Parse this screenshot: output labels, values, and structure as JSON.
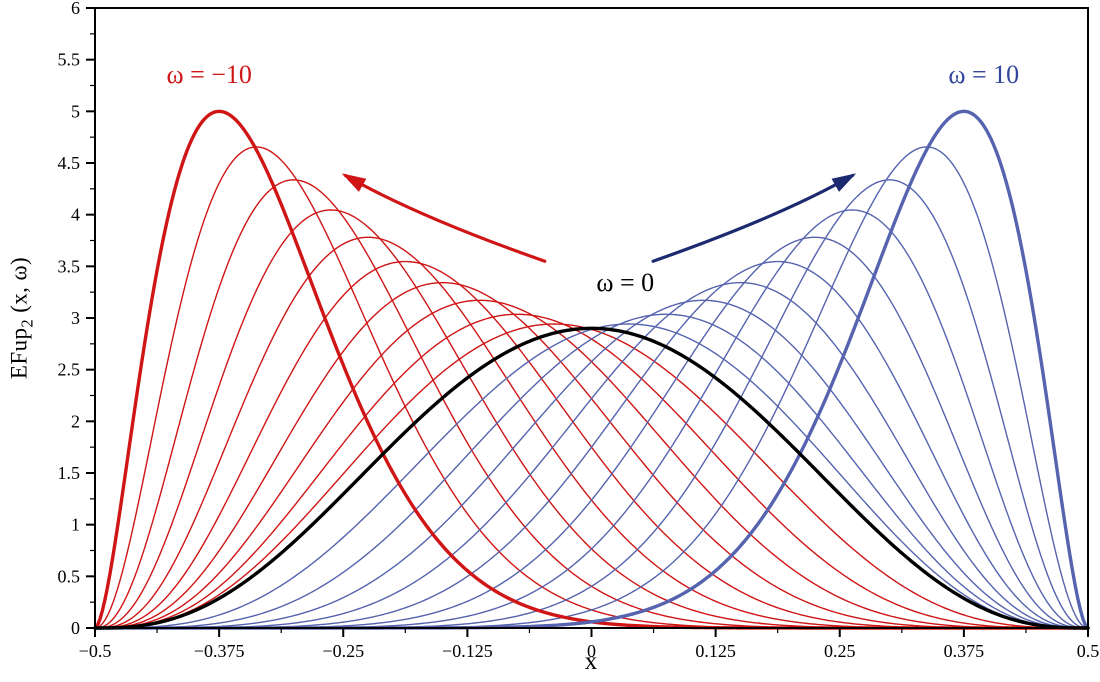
{
  "chart_data": {
    "type": "line",
    "title": "",
    "xlabel": "x",
    "ylabel": "EFup2 (x, ω)",
    "ylabel_parts": {
      "prefix": "EFup",
      "sub": "2",
      "suffix": " (x, ω)"
    },
    "xlim": [
      -0.5,
      0.5
    ],
    "ylim": [
      0,
      6
    ],
    "grid": false,
    "legend": "none",
    "x_ticks": [
      {
        "v": -0.5,
        "label": "−0.5"
      },
      {
        "v": -0.375,
        "label": "−0.375"
      },
      {
        "v": -0.25,
        "label": "−0.25"
      },
      {
        "v": -0.125,
        "label": "−0.125"
      },
      {
        "v": 0,
        "label": "0"
      },
      {
        "v": 0.125,
        "label": "0.125"
      },
      {
        "v": 0.25,
        "label": "0.25"
      },
      {
        "v": 0.375,
        "label": "0.375"
      },
      {
        "v": 0.5,
        "label": "0.5"
      }
    ],
    "y_ticks": [
      {
        "v": 0,
        "label": "0"
      },
      {
        "v": 0.5,
        "label": "0.5"
      },
      {
        "v": 1,
        "label": "1"
      },
      {
        "v": 1.5,
        "label": "1.5"
      },
      {
        "v": 2,
        "label": "2"
      },
      {
        "v": 2.5,
        "label": "2.5"
      },
      {
        "v": 3,
        "label": "3"
      },
      {
        "v": 3.5,
        "label": "3.5"
      },
      {
        "v": 4,
        "label": "4"
      },
      {
        "v": 4.5,
        "label": "4.5"
      },
      {
        "v": 5,
        "label": "5"
      },
      {
        "v": 5.5,
        "label": "5.5"
      },
      {
        "v": 6,
        "label": "6"
      }
    ],
    "x_minor_step": 0.0625,
    "y_minor_step": 0.25,
    "omega_values": [
      -10,
      -9,
      -8,
      -7,
      -6,
      -5,
      -4,
      -3,
      -2,
      -1,
      0,
      1,
      2,
      3,
      4,
      5,
      6,
      7,
      8,
      9,
      10
    ],
    "curve_model": {
      "formula": "EFup2(x,w) ~ peak(w) * (t/m)^(m*k) * ((1-t)/(1-m))^((1-m)*k), with t=x+0.5, m=0.5+mode_scale*w, k=k_base+k_slope*|w|, peak=peak_base+peak_gain*(|w|/10)^peak_exponent",
      "mode_scale": 0.0375,
      "k_base": 5.6,
      "k_slope": 0.84,
      "peak_base": 2.9,
      "peak_gain": 2.1,
      "peak_exponent": 1.7,
      "samples": 400
    },
    "curve_peaks": [
      {
        "omega": -10,
        "x_peak": -0.375,
        "y_peak": 5.0
      },
      {
        "omega": -9,
        "x_peak": -0.3375,
        "y_peak": 4.66
      },
      {
        "omega": -8,
        "x_peak": -0.3,
        "y_peak": 4.34
      },
      {
        "omega": -7,
        "x_peak": -0.2625,
        "y_peak": 4.05
      },
      {
        "omega": -6,
        "x_peak": -0.225,
        "y_peak": 3.78
      },
      {
        "omega": -5,
        "x_peak": -0.1875,
        "y_peak": 3.55
      },
      {
        "omega": -4,
        "x_peak": -0.15,
        "y_peak": 3.34
      },
      {
        "omega": -3,
        "x_peak": -0.1125,
        "y_peak": 3.17
      },
      {
        "omega": -2,
        "x_peak": -0.075,
        "y_peak": 3.04
      },
      {
        "omega": -1,
        "x_peak": -0.0375,
        "y_peak": 2.94
      },
      {
        "omega": 0,
        "x_peak": 0,
        "y_peak": 2.9
      },
      {
        "omega": 1,
        "x_peak": 0.0375,
        "y_peak": 2.94
      },
      {
        "omega": 2,
        "x_peak": 0.075,
        "y_peak": 3.04
      },
      {
        "omega": 3,
        "x_peak": 0.1125,
        "y_peak": 3.17
      },
      {
        "omega": 4,
        "x_peak": 0.15,
        "y_peak": 3.34
      },
      {
        "omega": 5,
        "x_peak": 0.1875,
        "y_peak": 3.55
      },
      {
        "omega": 6,
        "x_peak": 0.225,
        "y_peak": 3.78
      },
      {
        "omega": 7,
        "x_peak": 0.2625,
        "y_peak": 4.05
      },
      {
        "omega": 8,
        "x_peak": 0.3,
        "y_peak": 4.34
      },
      {
        "omega": 9,
        "x_peak": 0.3375,
        "y_peak": 4.66
      },
      {
        "omega": 10,
        "x_peak": 0.375,
        "y_peak": 5.0
      }
    ],
    "style": {
      "negative_color": "#cf1515",
      "positive_color": "#5663ae",
      "zero_color": "#000000",
      "frame_color": "#000000",
      "thick_width": 3.4,
      "thin_width": 1.4
    },
    "annotations": [
      {
        "id": "omega-minus-10",
        "text": "ω = −10",
        "x": -0.385,
        "y": 5.35,
        "color": "#cf1515"
      },
      {
        "id": "omega-10",
        "text": "ω = 10",
        "x": 0.395,
        "y": 5.35,
        "color": "#33449c"
      },
      {
        "id": "omega-0",
        "text": "ω = 0",
        "x": 0.034,
        "y": 3.34,
        "color": "#000000"
      }
    ],
    "arrows": [
      {
        "id": "arrow-to-negative",
        "color": "#cf1515",
        "x1": -0.047,
        "y1": 3.55,
        "cx": -0.175,
        "cy": 3.98,
        "x2": -0.248,
        "y2": 4.38
      },
      {
        "id": "arrow-to-positive",
        "color": "#1c2a70",
        "x1": 0.062,
        "y1": 3.55,
        "cx": 0.19,
        "cy": 3.98,
        "x2": 0.263,
        "y2": 4.38
      }
    ]
  }
}
